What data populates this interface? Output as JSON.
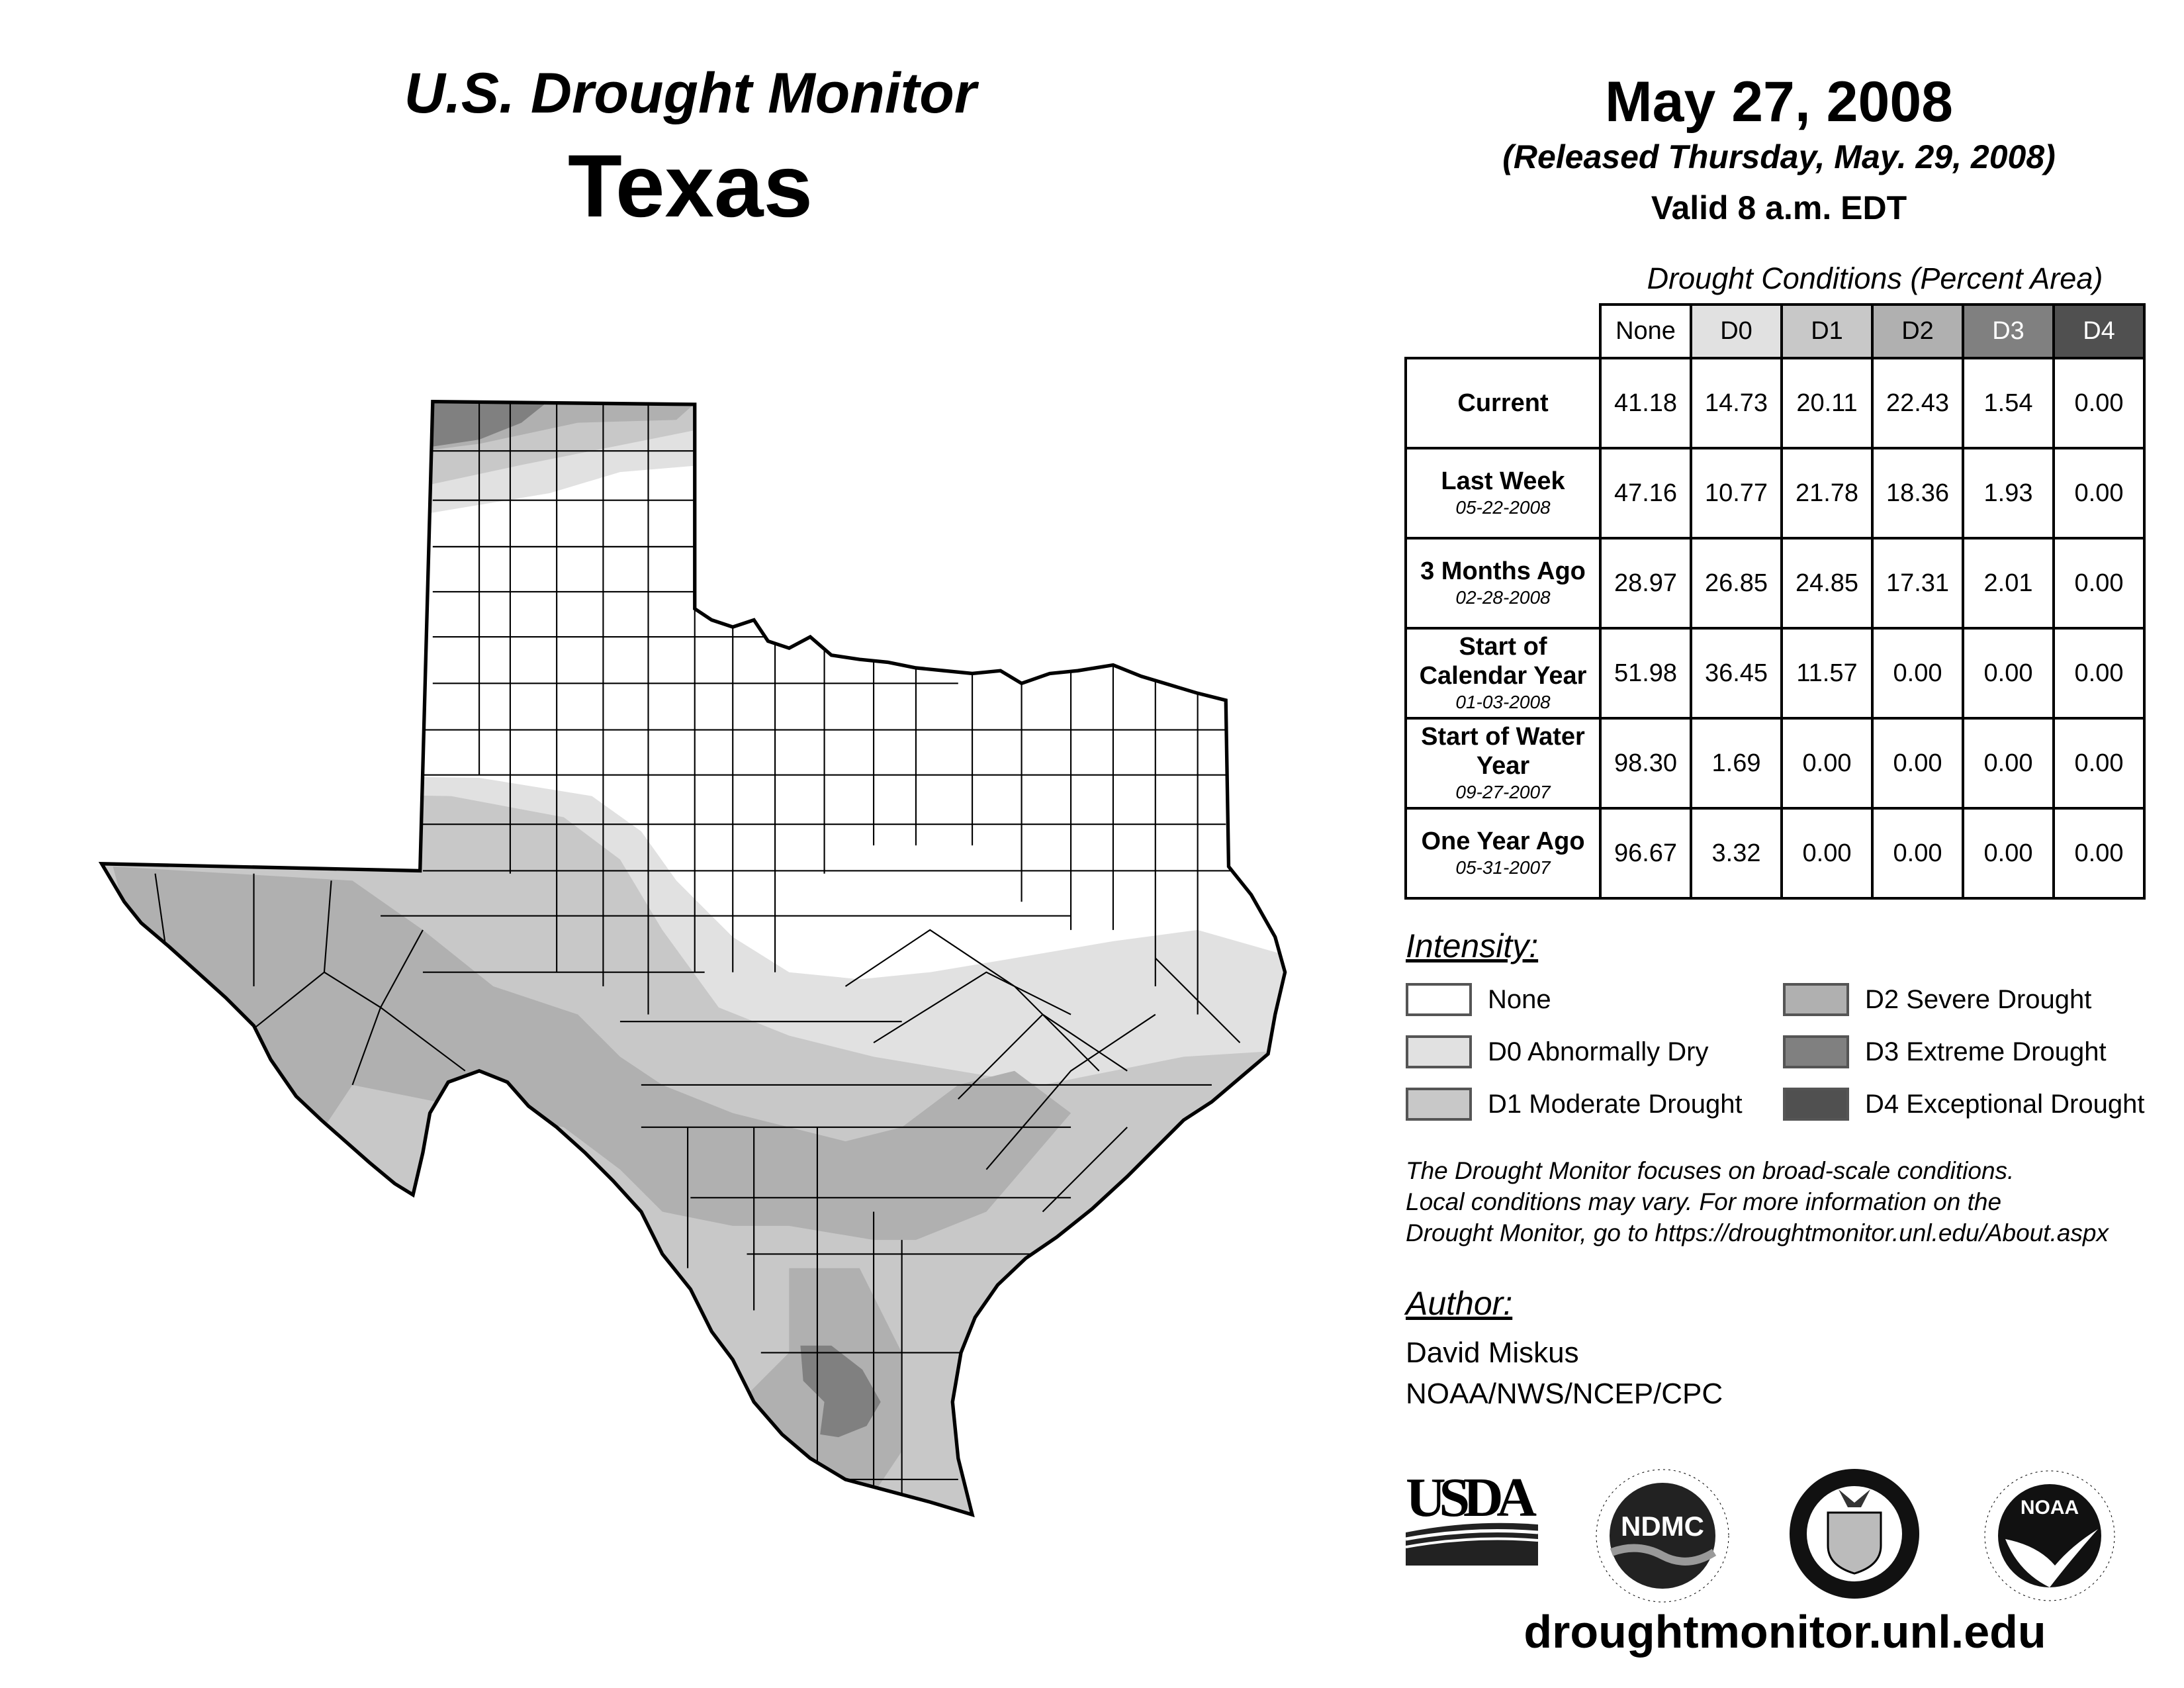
{
  "header": {
    "title": "U.S. Drought Monitor",
    "region": "Texas",
    "date": "May 27, 2008",
    "released": "(Released Thursday, May. 29, 2008)",
    "valid": "Valid 8 a.m. EDT"
  },
  "table": {
    "title": "Drought Conditions (Percent Area)",
    "columns": [
      "None",
      "D0",
      "D1",
      "D2",
      "D3",
      "D4"
    ],
    "column_colors": [
      "#ffffff",
      "#e1e1e1",
      "#c8c8c8",
      "#b0b0b0",
      "#808080",
      "#505050"
    ],
    "rows": [
      {
        "label": "Current",
        "date": "",
        "values": [
          "41.18",
          "14.73",
          "20.11",
          "22.43",
          "1.54",
          "0.00"
        ]
      },
      {
        "label": "Last Week",
        "date": "05-22-2008",
        "values": [
          "47.16",
          "10.77",
          "21.78",
          "18.36",
          "1.93",
          "0.00"
        ]
      },
      {
        "label": "3 Months Ago",
        "date": "02-28-2008",
        "values": [
          "28.97",
          "26.85",
          "24.85",
          "17.31",
          "2.01",
          "0.00"
        ]
      },
      {
        "label": "Start of Calendar Year",
        "date": "01-03-2008",
        "values": [
          "51.98",
          "36.45",
          "11.57",
          "0.00",
          "0.00",
          "0.00"
        ]
      },
      {
        "label": "Start of Water Year",
        "date": "09-27-2007",
        "values": [
          "98.30",
          "1.69",
          "0.00",
          "0.00",
          "0.00",
          "0.00"
        ]
      },
      {
        "label": "One Year Ago",
        "date": "05-31-2007",
        "values": [
          "96.67",
          "3.32",
          "0.00",
          "0.00",
          "0.00",
          "0.00"
        ]
      }
    ]
  },
  "legend": {
    "title": "Intensity:",
    "items": [
      {
        "label": "None",
        "color": "#ffffff"
      },
      {
        "label": "D0 Abnormally Dry",
        "color": "#e1e1e1"
      },
      {
        "label": "D1 Moderate Drought",
        "color": "#c8c8c8"
      },
      {
        "label": "D2 Severe Drought",
        "color": "#b0b0b0"
      },
      {
        "label": "D3 Extreme Drought",
        "color": "#808080"
      },
      {
        "label": "D4 Exceptional Drought",
        "color": "#505050"
      }
    ]
  },
  "note": {
    "line1": "The Drought Monitor focuses on broad-scale conditions.",
    "line2": "Local conditions may vary. For more information on the",
    "line3": "Drought Monitor, go to https://droughtmonitor.unl.edu/About.aspx"
  },
  "author": {
    "title": "Author:",
    "name": "David Miskus",
    "org": "NOAA/NWS/NCEP/CPC"
  },
  "logos": {
    "usda": "USDA",
    "ndmc": "NDMC",
    "ndmc_ring": "NATIONAL DROUGHT MITIGATION CENTER · UNIVERSITY OF NEBRASKA",
    "doc_ring": "DEPARTMENT OF COMMERCE · UNITED STATES OF AMERICA",
    "noaa": "NOAA",
    "noaa_ring": "NATIONAL OCEANIC AND ATMOSPHERIC ADMINISTRATION · U.S. DEPARTMENT OF COMMERCE"
  },
  "footer": {
    "url": "droughtmonitor.unl.edu"
  }
}
